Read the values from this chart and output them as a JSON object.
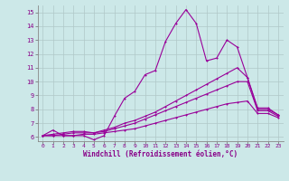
{
  "xlabel": "Windchill (Refroidissement éolien,°C)",
  "background_color": "#cce8e8",
  "grid_color": "#b0c8c8",
  "line_color": "#990099",
  "xlim": [
    -0.5,
    23.5
  ],
  "ylim": [
    5.7,
    15.5
  ],
  "xticks": [
    0,
    1,
    2,
    3,
    4,
    5,
    6,
    7,
    8,
    9,
    10,
    11,
    12,
    13,
    14,
    15,
    16,
    17,
    18,
    19,
    20,
    21,
    22,
    23
  ],
  "yticks": [
    6,
    7,
    8,
    9,
    10,
    11,
    12,
    13,
    14,
    15
  ],
  "lines": [
    {
      "x": [
        0,
        1,
        2,
        3,
        4,
        5,
        6,
        7,
        8,
        9,
        10,
        11,
        12,
        13,
        14,
        15,
        16,
        17,
        18,
        19,
        20,
        21,
        22,
        23
      ],
      "y": [
        6.1,
        6.5,
        6.1,
        6.1,
        6.1,
        5.8,
        6.1,
        7.5,
        8.8,
        9.3,
        10.5,
        10.8,
        12.9,
        14.2,
        15.2,
        14.2,
        11.5,
        11.7,
        13.0,
        12.5,
        10.3,
        8.1,
        8.1,
        7.6
      ]
    },
    {
      "x": [
        0,
        1,
        2,
        3,
        4,
        5,
        6,
        7,
        8,
        9,
        10,
        11,
        12,
        13,
        14,
        15,
        16,
        17,
        18,
        19,
        20,
        21,
        22,
        23
      ],
      "y": [
        6.1,
        6.2,
        6.3,
        6.4,
        6.4,
        6.3,
        6.5,
        6.7,
        7.0,
        7.2,
        7.5,
        7.8,
        8.2,
        8.6,
        9.0,
        9.4,
        9.8,
        10.2,
        10.6,
        11.0,
        10.3,
        8.0,
        8.0,
        7.6
      ]
    },
    {
      "x": [
        0,
        1,
        2,
        3,
        4,
        5,
        6,
        7,
        8,
        9,
        10,
        11,
        12,
        13,
        14,
        15,
        16,
        17,
        18,
        19,
        20,
        21,
        22,
        23
      ],
      "y": [
        6.1,
        6.1,
        6.2,
        6.3,
        6.3,
        6.3,
        6.4,
        6.6,
        6.8,
        7.0,
        7.3,
        7.6,
        7.9,
        8.2,
        8.5,
        8.8,
        9.1,
        9.4,
        9.7,
        10.0,
        10.0,
        7.9,
        7.9,
        7.5
      ]
    },
    {
      "x": [
        0,
        1,
        2,
        3,
        4,
        5,
        6,
        7,
        8,
        9,
        10,
        11,
        12,
        13,
        14,
        15,
        16,
        17,
        18,
        19,
        20,
        21,
        22,
        23
      ],
      "y": [
        6.1,
        6.1,
        6.1,
        6.1,
        6.2,
        6.2,
        6.3,
        6.4,
        6.5,
        6.6,
        6.8,
        7.0,
        7.2,
        7.4,
        7.6,
        7.8,
        8.0,
        8.2,
        8.4,
        8.5,
        8.6,
        7.7,
        7.7,
        7.4
      ]
    }
  ]
}
